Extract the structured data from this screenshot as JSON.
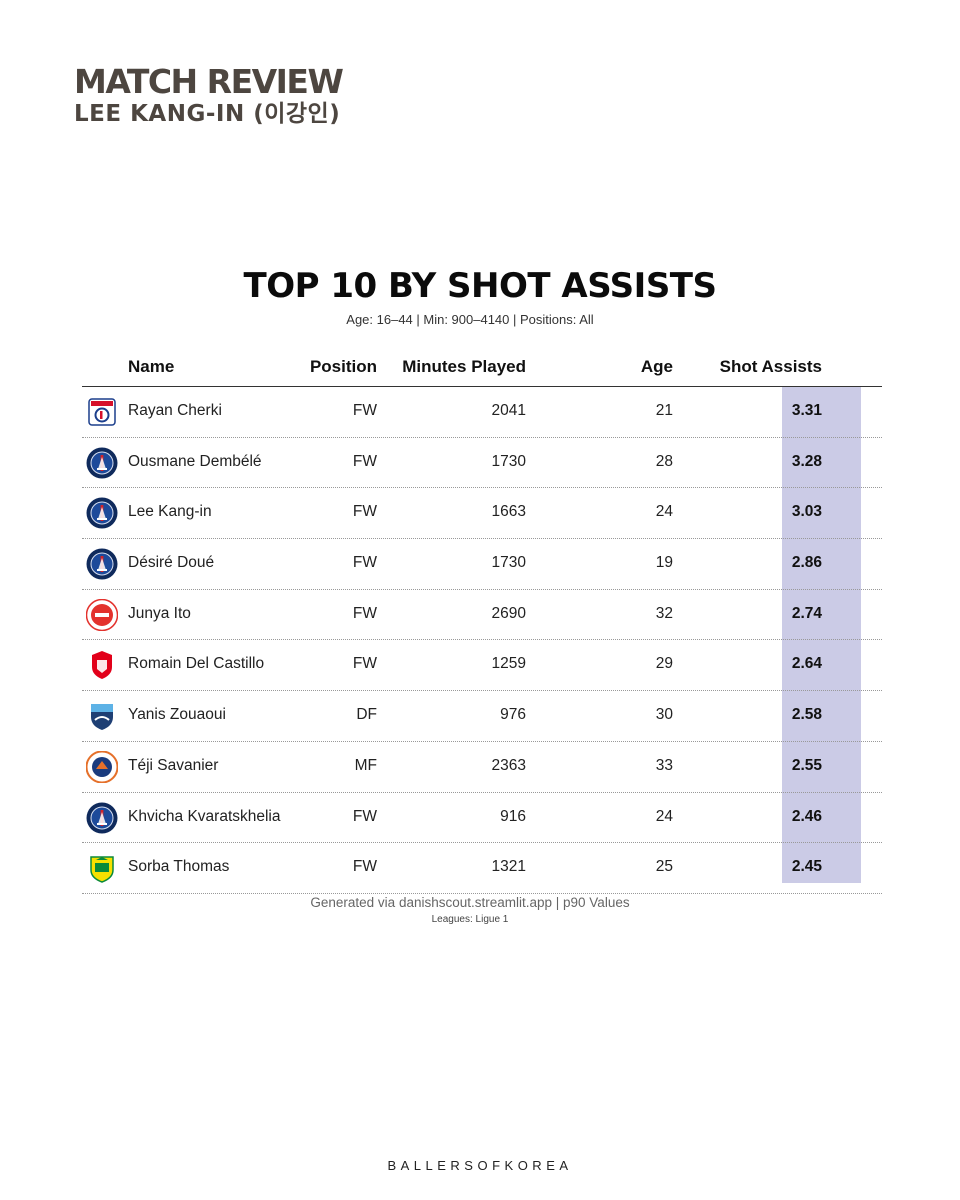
{
  "header": {
    "line1": "MATCH REVIEW",
    "line2": "LEE KANG-IN (이강인)"
  },
  "chart_data": {
    "type": "table",
    "title": "TOP 10 BY SHOT ASSISTS",
    "subtitle": "Age: 16–44 | Min: 900–4140 | Positions: All",
    "columns": [
      "Name",
      "Position",
      "Minutes Played",
      "Age",
      "Shot Assists"
    ],
    "rows": [
      {
        "name": "Rayan Cherki",
        "position": "FW",
        "minutes": "2041",
        "age": "21",
        "shot_assists": "3.31",
        "club_icon": "lyon-crest-icon"
      },
      {
        "name": "Ousmane Dembélé",
        "position": "FW",
        "minutes": "1730",
        "age": "28",
        "shot_assists": "3.28",
        "club_icon": "psg-crest-icon"
      },
      {
        "name": "Lee Kang-in",
        "position": "FW",
        "minutes": "1663",
        "age": "24",
        "shot_assists": "3.03",
        "club_icon": "psg-crest-icon"
      },
      {
        "name": "Désiré Doué",
        "position": "FW",
        "minutes": "1730",
        "age": "19",
        "shot_assists": "2.86",
        "club_icon": "psg-crest-icon"
      },
      {
        "name": "Junya Ito",
        "position": "FW",
        "minutes": "2690",
        "age": "32",
        "shot_assists": "2.74",
        "club_icon": "reims-crest-icon"
      },
      {
        "name": "Romain Del Castillo",
        "position": "FW",
        "minutes": "1259",
        "age": "29",
        "shot_assists": "2.64",
        "club_icon": "brest-crest-icon"
      },
      {
        "name": "Yanis Zouaoui",
        "position": "DF",
        "minutes": "976",
        "age": "30",
        "shot_assists": "2.58",
        "club_icon": "le-havre-crest-icon"
      },
      {
        "name": "Téji Savanier",
        "position": "MF",
        "minutes": "2363",
        "age": "33",
        "shot_assists": "2.55",
        "club_icon": "montpellier-crest-icon"
      },
      {
        "name": "Khvicha Kvaratskhelia",
        "position": "FW",
        "minutes": "916",
        "age": "24",
        "shot_assists": "2.46",
        "club_icon": "psg-crest-icon"
      },
      {
        "name": "Sorba Thomas",
        "position": "FW",
        "minutes": "1321",
        "age": "25",
        "shot_assists": "2.45",
        "club_icon": "nantes-crest-icon"
      }
    ],
    "highlight_color": "#cbcbe6",
    "highlight_column": "Shot Assists"
  },
  "footer": {
    "source": "Generated via danishscout.streamlit.app | p90 Values",
    "leagues": "Leagues: Ligue 1",
    "brand": "BALLERSOFKOREA"
  }
}
